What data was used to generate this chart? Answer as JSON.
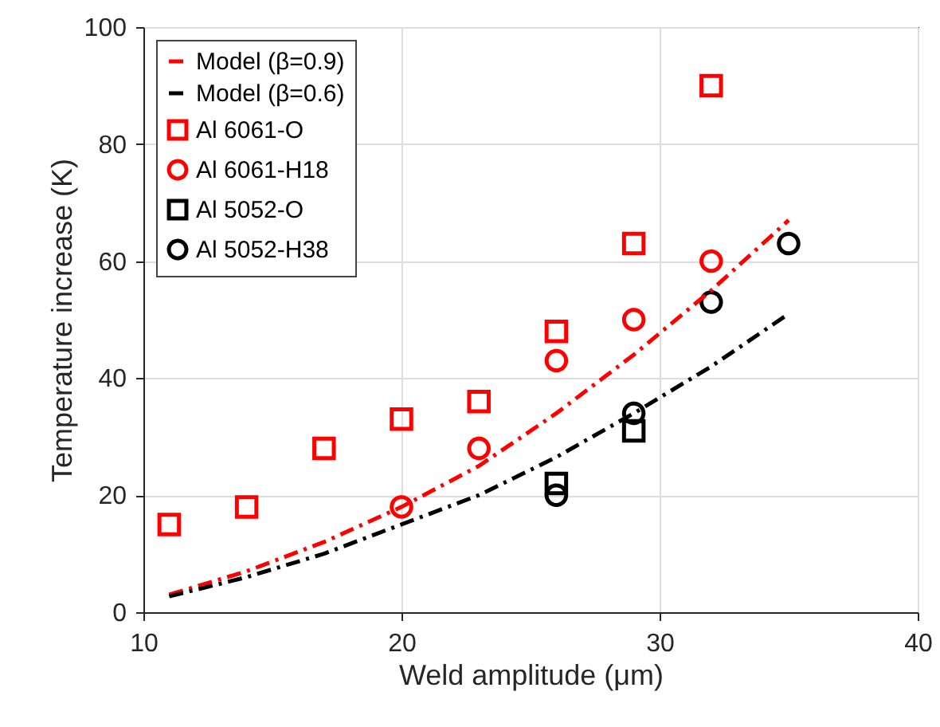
{
  "chart_data": {
    "type": "scatter",
    "xlabel": "Weld amplitude (μm)",
    "ylabel": "Temperature increase (K)",
    "xlim": [
      10,
      40
    ],
    "xticks": [
      10,
      20,
      30,
      40
    ],
    "ylim": [
      0,
      100
    ],
    "yticks": [
      0,
      20,
      40,
      60,
      80,
      100
    ],
    "grid": true,
    "legend": "top left",
    "series": [
      {
        "name": "Model (β=0.9)",
        "type": "line",
        "line_style": "dashed",
        "marker": "none",
        "color": "#ff0000",
        "x": [
          11,
          14,
          17,
          20,
          23,
          26,
          29,
          32,
          35
        ],
        "values": [
          3,
          7,
          12,
          18,
          25,
          34,
          44,
          55,
          67
        ]
      },
      {
        "name": "Model (β=0.6)",
        "type": "line",
        "line_style": "dashed",
        "marker": "none",
        "color": "#000000",
        "x": [
          11,
          14,
          17,
          20,
          23,
          26,
          29,
          32,
          35
        ],
        "values": [
          2.7,
          6,
          10,
          15,
          20,
          26.5,
          34,
          42,
          51
        ]
      },
      {
        "name": "Al 6061-O",
        "marker": "square",
        "color": "#ff0000",
        "x": [
          11,
          14,
          17,
          20,
          23,
          26,
          29,
          32
        ],
        "values": [
          15,
          18,
          28,
          33,
          36,
          48,
          63,
          90
        ]
      },
      {
        "name": "Al 6061-H18",
        "marker": "circle",
        "color": "#ff0000",
        "x": [
          20,
          23,
          26,
          29,
          32
        ],
        "values": [
          18,
          28,
          43,
          50,
          60
        ]
      },
      {
        "name": "Al 5052-O",
        "marker": "square",
        "color": "#000000",
        "x": [
          26,
          29
        ],
        "values": [
          22,
          31
        ]
      },
      {
        "name": "Al 5052-H38",
        "marker": "circle",
        "color": "#000000",
        "x": [
          26,
          29,
          32,
          35
        ],
        "values": [
          20,
          34,
          53,
          63
        ]
      }
    ]
  }
}
